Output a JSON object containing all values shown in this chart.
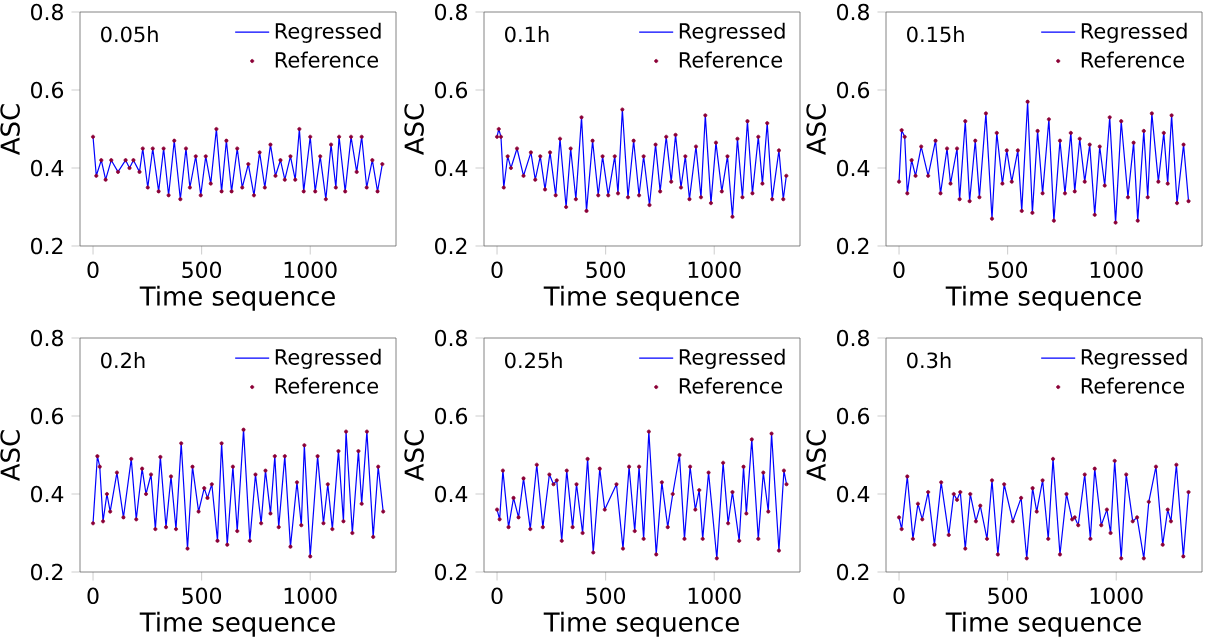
{
  "chart_data": [
    {
      "type": "line",
      "xlabel": "Time sequence",
      "ylabel": "ASC",
      "annotations": [
        "0.05h"
      ],
      "legend": "top right",
      "xlim": [
        -60,
        1395
      ],
      "ylim": [
        0.2,
        0.8
      ],
      "xticks": [
        0,
        500,
        1000
      ],
      "yticks": [
        0.2,
        0.4,
        0.6,
        0.8
      ],
      "x": [
        0,
        15,
        38,
        58,
        84,
        115,
        150,
        168,
        186,
        214,
        229,
        252,
        275,
        302,
        325,
        348,
        374,
        402,
        428,
        446,
        473,
        496,
        519,
        542,
        568,
        592,
        614,
        638,
        664,
        687,
        715,
        741,
        767,
        791,
        817,
        840,
        863,
        883,
        909,
        931,
        950,
        970,
        1000,
        1023,
        1046,
        1072,
        1096,
        1118,
        1133,
        1161,
        1188,
        1214,
        1237,
        1260,
        1286,
        1310,
        1332
      ],
      "series": [
        {
          "name": "Regressed",
          "color": "#0000ff",
          "marker": "none",
          "values": [
            0.48,
            0.38,
            0.42,
            0.37,
            0.42,
            0.39,
            0.42,
            0.4,
            0.42,
            0.39,
            0.45,
            0.35,
            0.45,
            0.34,
            0.45,
            0.33,
            0.47,
            0.32,
            0.45,
            0.35,
            0.43,
            0.33,
            0.43,
            0.36,
            0.5,
            0.34,
            0.47,
            0.34,
            0.45,
            0.35,
            0.41,
            0.33,
            0.44,
            0.35,
            0.46,
            0.38,
            0.42,
            0.37,
            0.43,
            0.37,
            0.5,
            0.34,
            0.48,
            0.34,
            0.43,
            0.32,
            0.46,
            0.35,
            0.48,
            0.34,
            0.48,
            0.39,
            0.48,
            0.35,
            0.42,
            0.34,
            0.41
          ]
        },
        {
          "name": "Reference",
          "type": "scatter",
          "color": "#8b0036",
          "marker": "circle",
          "values": [
            0.48,
            0.38,
            0.42,
            0.37,
            0.42,
            0.39,
            0.42,
            0.4,
            0.42,
            0.39,
            0.45,
            0.35,
            0.45,
            0.34,
            0.45,
            0.33,
            0.47,
            0.32,
            0.45,
            0.35,
            0.43,
            0.33,
            0.43,
            0.36,
            0.5,
            0.34,
            0.47,
            0.34,
            0.45,
            0.35,
            0.41,
            0.33,
            0.44,
            0.35,
            0.46,
            0.38,
            0.42,
            0.37,
            0.43,
            0.37,
            0.5,
            0.34,
            0.48,
            0.34,
            0.43,
            0.32,
            0.46,
            0.35,
            0.48,
            0.34,
            0.48,
            0.39,
            0.48,
            0.35,
            0.42,
            0.34,
            0.41
          ]
        }
      ]
    },
    {
      "type": "line",
      "xlabel": "Time sequence",
      "ylabel": "ASC",
      "annotations": [
        "0.1h"
      ],
      "legend": "top right",
      "xlim": [
        -60,
        1395
      ],
      "ylim": [
        0.2,
        0.8
      ],
      "xticks": [
        0,
        500,
        1000
      ],
      "yticks": [
        0.2,
        0.4,
        0.6,
        0.8
      ],
      "x": [
        0,
        8,
        18,
        31,
        49,
        64,
        92,
        122,
        156,
        176,
        199,
        221,
        244,
        270,
        290,
        318,
        339,
        363,
        389,
        412,
        440,
        466,
        486,
        512,
        542,
        557,
        577,
        603,
        629,
        654,
        675,
        702,
        730,
        751,
        779,
        802,
        822,
        847,
        867,
        886,
        916,
        939,
        959,
        985,
        1008,
        1035,
        1061,
        1084,
        1107,
        1130,
        1153,
        1176,
        1203,
        1222,
        1244,
        1267,
        1298,
        1318,
        1332
      ],
      "series": [
        {
          "name": "Regressed",
          "color": "#0000ff",
          "marker": "none",
          "values": [
            0.48,
            0.5,
            0.48,
            0.35,
            0.43,
            0.4,
            0.45,
            0.38,
            0.44,
            0.37,
            0.43,
            0.345,
            0.44,
            0.33,
            0.475,
            0.3,
            0.45,
            0.32,
            0.53,
            0.29,
            0.47,
            0.33,
            0.43,
            0.33,
            0.43,
            0.335,
            0.55,
            0.325,
            0.47,
            0.33,
            0.43,
            0.305,
            0.46,
            0.34,
            0.48,
            0.365,
            0.485,
            0.35,
            0.43,
            0.32,
            0.455,
            0.325,
            0.535,
            0.31,
            0.465,
            0.34,
            0.43,
            0.275,
            0.475,
            0.325,
            0.52,
            0.335,
            0.48,
            0.36,
            0.515,
            0.32,
            0.445,
            0.32,
            0.38
          ]
        },
        {
          "name": "Reference",
          "type": "scatter",
          "color": "#8b0036",
          "marker": "circle",
          "values": [
            0.48,
            0.5,
            0.48,
            0.35,
            0.43,
            0.4,
            0.45,
            0.38,
            0.44,
            0.37,
            0.43,
            0.345,
            0.44,
            0.33,
            0.475,
            0.3,
            0.45,
            0.32,
            0.53,
            0.29,
            0.47,
            0.33,
            0.43,
            0.33,
            0.43,
            0.335,
            0.55,
            0.325,
            0.47,
            0.33,
            0.43,
            0.305,
            0.46,
            0.34,
            0.48,
            0.365,
            0.485,
            0.35,
            0.43,
            0.32,
            0.455,
            0.325,
            0.535,
            0.31,
            0.465,
            0.34,
            0.43,
            0.275,
            0.475,
            0.325,
            0.52,
            0.335,
            0.48,
            0.36,
            0.515,
            0.32,
            0.445,
            0.32,
            0.38
          ]
        }
      ]
    },
    {
      "type": "line",
      "xlabel": "Time sequence",
      "ylabel": "ASC",
      "annotations": [
        "0.15h"
      ],
      "legend": "top right",
      "xlim": [
        -60,
        1395
      ],
      "ylim": [
        0.2,
        0.8
      ],
      "xticks": [
        0,
        500,
        1000
      ],
      "yticks": [
        0.2,
        0.4,
        0.6,
        0.8
      ],
      "x": [
        0,
        12,
        26,
        38,
        58,
        76,
        102,
        134,
        168,
        191,
        221,
        237,
        267,
        279,
        305,
        325,
        351,
        370,
        400,
        428,
        450,
        476,
        496,
        519,
        547,
        565,
        592,
        614,
        638,
        661,
        690,
        713,
        741,
        764,
        791,
        809,
        832,
        855,
        878,
        901,
        924,
        947,
        970,
        997,
        1023,
        1054,
        1080,
        1099,
        1127,
        1145,
        1164,
        1194,
        1219,
        1237,
        1255,
        1280,
        1310,
        1333
      ],
      "series": [
        {
          "name": "Regressed",
          "color": "#0000ff",
          "marker": "none",
          "values": [
            0.365,
            0.497,
            0.48,
            0.335,
            0.42,
            0.38,
            0.455,
            0.38,
            0.47,
            0.335,
            0.45,
            0.36,
            0.45,
            0.32,
            0.52,
            0.315,
            0.47,
            0.325,
            0.54,
            0.27,
            0.49,
            0.36,
            0.445,
            0.365,
            0.445,
            0.29,
            0.57,
            0.285,
            0.495,
            0.335,
            0.525,
            0.265,
            0.47,
            0.335,
            0.49,
            0.34,
            0.475,
            0.365,
            0.46,
            0.28,
            0.455,
            0.355,
            0.53,
            0.26,
            0.52,
            0.325,
            0.465,
            0.265,
            0.495,
            0.325,
            0.54,
            0.365,
            0.49,
            0.36,
            0.535,
            0.31,
            0.46,
            0.315
          ]
        },
        {
          "name": "Reference",
          "type": "scatter",
          "color": "#8b0036",
          "marker": "circle",
          "values": [
            0.365,
            0.497,
            0.48,
            0.335,
            0.42,
            0.38,
            0.455,
            0.38,
            0.47,
            0.335,
            0.45,
            0.36,
            0.45,
            0.32,
            0.52,
            0.315,
            0.47,
            0.325,
            0.54,
            0.27,
            0.49,
            0.36,
            0.445,
            0.365,
            0.445,
            0.29,
            0.57,
            0.285,
            0.495,
            0.335,
            0.525,
            0.265,
            0.47,
            0.335,
            0.49,
            0.34,
            0.475,
            0.365,
            0.46,
            0.28,
            0.455,
            0.355,
            0.53,
            0.26,
            0.52,
            0.325,
            0.465,
            0.265,
            0.495,
            0.325,
            0.54,
            0.365,
            0.49,
            0.36,
            0.535,
            0.31,
            0.46,
            0.315
          ]
        }
      ]
    },
    {
      "type": "line",
      "xlabel": "Time sequence",
      "ylabel": "ASC",
      "annotations": [
        "0.2h"
      ],
      "legend": "top right",
      "xlim": [
        -60,
        1395
      ],
      "ylim": [
        0.2,
        0.8
      ],
      "xticks": [
        0,
        500,
        1000
      ],
      "yticks": [
        0.2,
        0.4,
        0.6,
        0.8
      ],
      "x": [
        0,
        20,
        31,
        46,
        64,
        79,
        110,
        140,
        176,
        199,
        226,
        244,
        267,
        287,
        310,
        336,
        359,
        382,
        406,
        435,
        458,
        486,
        512,
        527,
        547,
        573,
        592,
        618,
        644,
        664,
        693,
        722,
        748,
        774,
        794,
        817,
        837,
        855,
        883,
        909,
        939,
        959,
        973,
        1000,
        1034,
        1061,
        1081,
        1102,
        1130,
        1153,
        1165,
        1194,
        1222,
        1237,
        1261,
        1290,
        1313,
        1336
      ],
      "series": [
        {
          "name": "Regressed",
          "color": "#0000ff",
          "marker": "none",
          "values": [
            0.325,
            0.497,
            0.47,
            0.33,
            0.4,
            0.355,
            0.455,
            0.34,
            0.49,
            0.335,
            0.465,
            0.4,
            0.45,
            0.31,
            0.495,
            0.315,
            0.445,
            0.31,
            0.53,
            0.26,
            0.47,
            0.355,
            0.415,
            0.39,
            0.425,
            0.28,
            0.53,
            0.27,
            0.47,
            0.305,
            0.565,
            0.28,
            0.45,
            0.325,
            0.46,
            0.35,
            0.497,
            0.315,
            0.497,
            0.265,
            0.43,
            0.32,
            0.525,
            0.24,
            0.497,
            0.325,
            0.425,
            0.31,
            0.51,
            0.33,
            0.56,
            0.3,
            0.51,
            0.375,
            0.56,
            0.29,
            0.47,
            0.355
          ]
        },
        {
          "name": "Reference",
          "type": "scatter",
          "color": "#8b0036",
          "marker": "circle",
          "values": [
            0.325,
            0.497,
            0.47,
            0.33,
            0.4,
            0.355,
            0.455,
            0.34,
            0.49,
            0.335,
            0.465,
            0.4,
            0.45,
            0.31,
            0.495,
            0.315,
            0.445,
            0.31,
            0.53,
            0.26,
            0.47,
            0.355,
            0.415,
            0.39,
            0.425,
            0.28,
            0.53,
            0.27,
            0.47,
            0.305,
            0.565,
            0.28,
            0.45,
            0.325,
            0.46,
            0.35,
            0.497,
            0.315,
            0.497,
            0.265,
            0.43,
            0.32,
            0.525,
            0.24,
            0.497,
            0.325,
            0.425,
            0.31,
            0.51,
            0.33,
            0.56,
            0.3,
            0.51,
            0.375,
            0.56,
            0.29,
            0.47,
            0.355
          ]
        }
      ]
    },
    {
      "type": "line",
      "xlabel": "Time sequence",
      "ylabel": "ASC",
      "annotations": [
        "0.25h"
      ],
      "legend": "top right",
      "xlim": [
        -60,
        1395
      ],
      "ylim": [
        0.2,
        0.8
      ],
      "xticks": [
        0,
        500,
        1000
      ],
      "yticks": [
        0.2,
        0.4,
        0.6,
        0.8
      ],
      "x": [
        0,
        12,
        27,
        53,
        76,
        99,
        122,
        153,
        183,
        211,
        241,
        260,
        275,
        298,
        321,
        348,
        366,
        394,
        417,
        443,
        473,
        496,
        550,
        580,
        608,
        634,
        654,
        675,
        699,
        733,
        759,
        786,
        809,
        840,
        863,
        889,
        913,
        931,
        947,
        974,
        1012,
        1041,
        1064,
        1084,
        1115,
        1135,
        1148,
        1173,
        1203,
        1226,
        1249,
        1264,
        1298,
        1321,
        1333
      ],
      "series": [
        {
          "name": "Regressed",
          "color": "#0000ff",
          "marker": "none",
          "values": [
            0.36,
            0.335,
            0.46,
            0.315,
            0.39,
            0.34,
            0.44,
            0.31,
            0.475,
            0.315,
            0.45,
            0.425,
            0.435,
            0.28,
            0.46,
            0.315,
            0.425,
            0.3,
            0.49,
            0.25,
            0.465,
            0.36,
            0.425,
            0.26,
            0.47,
            0.305,
            0.47,
            0.285,
            0.56,
            0.245,
            0.43,
            0.315,
            0.4,
            0.5,
            0.285,
            0.47,
            0.36,
            0.41,
            0.285,
            0.455,
            0.235,
            0.48,
            0.325,
            0.405,
            0.28,
            0.47,
            0.35,
            0.54,
            0.285,
            0.455,
            0.355,
            0.555,
            0.255,
            0.46,
            0.425
          ]
        },
        {
          "name": "Reference",
          "type": "scatter",
          "color": "#8b0036",
          "marker": "circle",
          "values": [
            0.36,
            0.335,
            0.46,
            0.315,
            0.39,
            0.34,
            0.44,
            0.31,
            0.475,
            0.315,
            0.45,
            0.425,
            0.435,
            0.28,
            0.46,
            0.315,
            0.425,
            0.3,
            0.49,
            0.25,
            0.465,
            0.36,
            0.425,
            0.26,
            0.47,
            0.305,
            0.47,
            0.285,
            0.56,
            0.245,
            0.43,
            0.315,
            0.4,
            0.5,
            0.285,
            0.47,
            0.36,
            0.41,
            0.285,
            0.455,
            0.235,
            0.48,
            0.325,
            0.405,
            0.28,
            0.47,
            0.35,
            0.54,
            0.285,
            0.455,
            0.355,
            0.555,
            0.255,
            0.46,
            0.425
          ]
        }
      ]
    },
    {
      "type": "line",
      "xlabel": "Time sequence",
      "ylabel": "ASC",
      "annotations": [
        "0.3h"
      ],
      "legend": "top right",
      "xlim": [
        -60,
        1395
      ],
      "ylim": [
        0.2,
        0.8
      ],
      "xticks": [
        0,
        500,
        1000
      ],
      "yticks": [
        0.2,
        0.4,
        0.6,
        0.8
      ],
      "x": [
        0,
        12,
        38,
        64,
        87,
        107,
        134,
        163,
        194,
        229,
        252,
        267,
        282,
        305,
        328,
        354,
        374,
        405,
        428,
        455,
        484,
        524,
        562,
        588,
        615,
        634,
        661,
        687,
        709,
        741,
        771,
        797,
        809,
        825,
        855,
        881,
        901,
        931,
        957,
        974,
        993,
        1023,
        1046,
        1076,
        1096,
        1127,
        1150,
        1183,
        1214,
        1237,
        1252,
        1277,
        1309,
        1333
      ],
      "series": [
        {
          "name": "Regressed",
          "color": "#0000ff",
          "marker": "none",
          "values": [
            0.34,
            0.31,
            0.445,
            0.285,
            0.375,
            0.335,
            0.405,
            0.27,
            0.43,
            0.295,
            0.4,
            0.385,
            0.405,
            0.26,
            0.4,
            0.33,
            0.37,
            0.285,
            0.435,
            0.245,
            0.425,
            0.33,
            0.39,
            0.235,
            0.415,
            0.355,
            0.435,
            0.285,
            0.49,
            0.245,
            0.4,
            0.335,
            0.34,
            0.32,
            0.45,
            0.285,
            0.465,
            0.32,
            0.36,
            0.3,
            0.485,
            0.235,
            0.45,
            0.33,
            0.34,
            0.235,
            0.38,
            0.47,
            0.27,
            0.36,
            0.33,
            0.475,
            0.24,
            0.405
          ]
        },
        {
          "name": "Reference",
          "type": "scatter",
          "color": "#8b0036",
          "marker": "circle",
          "values": [
            0.34,
            0.31,
            0.445,
            0.285,
            0.375,
            0.335,
            0.405,
            0.27,
            0.43,
            0.295,
            0.4,
            0.385,
            0.405,
            0.26,
            0.4,
            0.33,
            0.37,
            0.285,
            0.435,
            0.245,
            0.425,
            0.33,
            0.39,
            0.235,
            0.415,
            0.355,
            0.435,
            0.285,
            0.49,
            0.245,
            0.4,
            0.335,
            0.34,
            0.32,
            0.45,
            0.285,
            0.465,
            0.32,
            0.36,
            0.3,
            0.485,
            0.235,
            0.45,
            0.33,
            0.34,
            0.235,
            0.38,
            0.47,
            0.27,
            0.36,
            0.33,
            0.475,
            0.24,
            0.405
          ]
        }
      ]
    }
  ]
}
